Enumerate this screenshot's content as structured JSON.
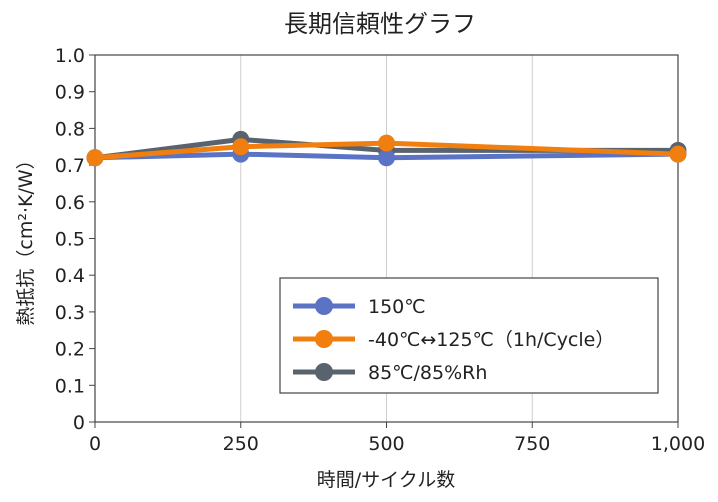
{
  "chart_data": {
    "type": "line",
    "title": "長期信頼性グラフ",
    "xlabel": "時間/サイクル数",
    "ylabel": "熱抵抗（cm²·K/W）",
    "x": [
      0,
      250,
      500,
      1000
    ],
    "xlim": [
      0,
      1000
    ],
    "ylim": [
      0,
      1.0
    ],
    "xticks": [
      0,
      250,
      500,
      750,
      1000
    ],
    "xtick_labels": [
      "0",
      "250",
      "500",
      "750",
      "1,000"
    ],
    "yticks": [
      0,
      0.1,
      0.2,
      0.3,
      0.4,
      0.5,
      0.6,
      0.7,
      0.8,
      0.9,
      1.0
    ],
    "ytick_labels": [
      "0",
      "0.1",
      "0.2",
      "0.3",
      "0.4",
      "0.5",
      "0.6",
      "0.7",
      "0.8",
      "0.9",
      "1.0"
    ],
    "grid": "vertical",
    "legend_position": "lower-right",
    "series": [
      {
        "name": "150℃",
        "color": "#5b73c4",
        "values": [
          0.72,
          0.73,
          0.72,
          0.73
        ]
      },
      {
        "name": "-40℃↔125℃（1h/Cycle）",
        "color": "#f07f0f",
        "values": [
          0.72,
          0.75,
          0.76,
          0.73
        ]
      },
      {
        "name": "85℃/85%Rh",
        "color": "#58636d",
        "values": [
          0.72,
          0.77,
          0.74,
          0.74
        ]
      }
    ]
  }
}
